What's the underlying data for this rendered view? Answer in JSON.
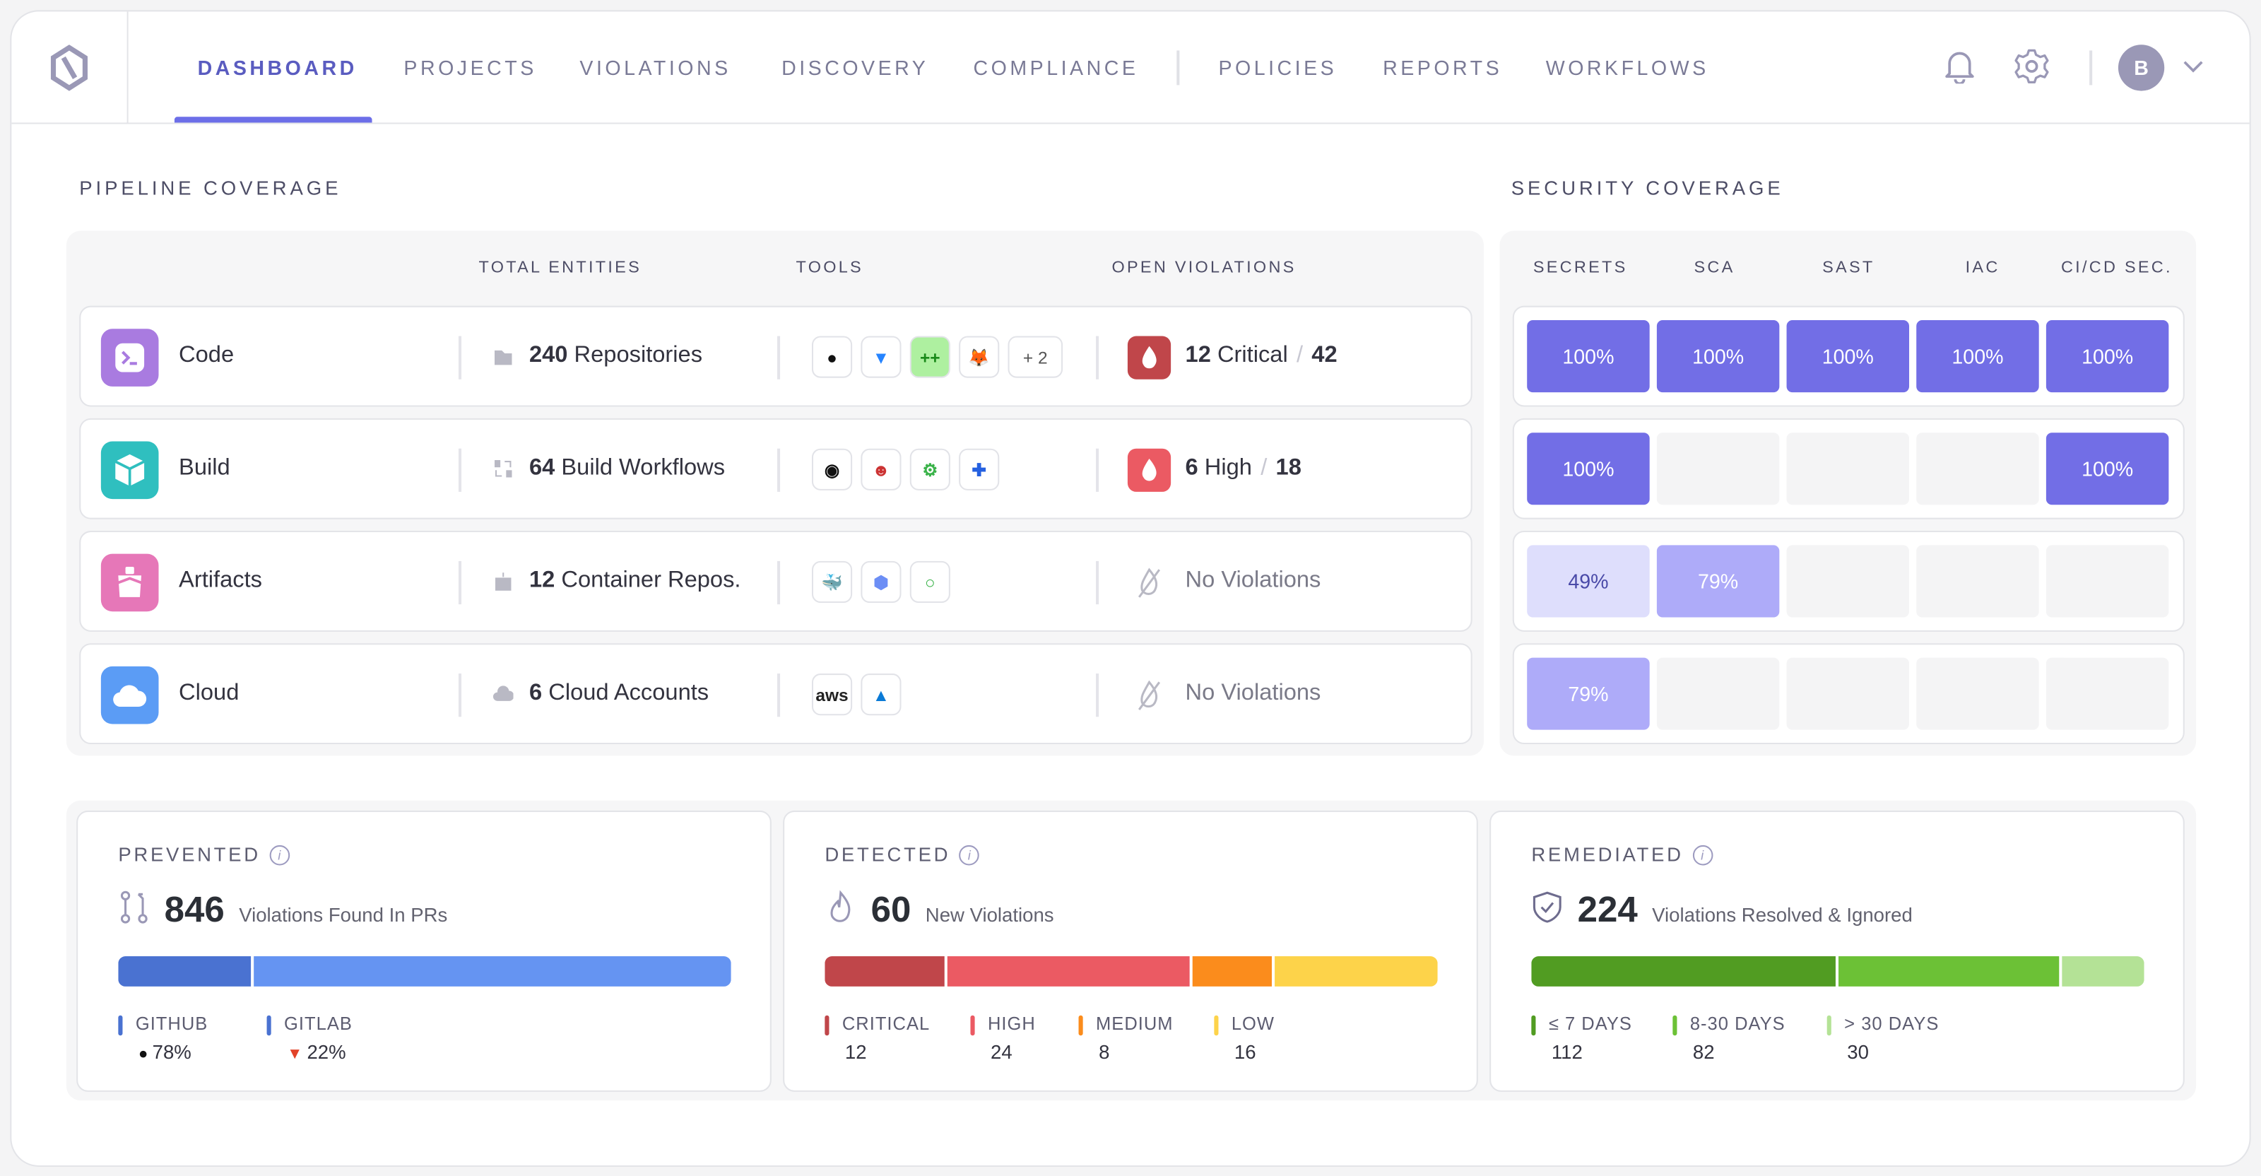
{
  "nav": {
    "items": [
      {
        "label": "DASHBOARD",
        "active": true
      },
      {
        "label": "PROJECTS"
      },
      {
        "label": "VIOLATIONS"
      },
      {
        "label": "DISCOVERY"
      },
      {
        "label": "COMPLIANCE"
      },
      {
        "label": "POLICIES"
      },
      {
        "label": "REPORTS"
      },
      {
        "label": "WORKFLOWS"
      }
    ],
    "avatar_initial": "B",
    "accent": "#6c6ee8"
  },
  "pipeline": {
    "title": "PIPELINE COVERAGE",
    "columns": [
      "TOTAL ENTITIES",
      "TOOLS",
      "OPEN VIOLATIONS"
    ],
    "rows": [
      {
        "label": "Code",
        "icon": "terminal-icon",
        "color": "#a97be0",
        "entity_count": "240",
        "entity_label": "Repositories",
        "entity_icon": "folder-icon",
        "tools": [
          "github-icon",
          "bitbucket-icon",
          "gerrit-icon",
          "gitlab-icon"
        ],
        "more": "+ 2",
        "violations": {
          "count": "12",
          "severity": "Critical",
          "total": "42",
          "color": "#c0464a"
        }
      },
      {
        "label": "Build",
        "icon": "box-icon",
        "color": "#2fbfbf",
        "entity_count": "64",
        "entity_label": "Build Workflows",
        "entity_icon": "workflow-icon",
        "tools": [
          "circleci-icon",
          "jenkins-icon",
          "github-actions-icon",
          "azure-pipelines-icon"
        ],
        "violations": {
          "count": "6",
          "severity": "High",
          "total": "18",
          "color": "#eb5a63"
        }
      },
      {
        "label": "Artifacts",
        "icon": "ship-icon",
        "color": "#e677b8",
        "entity_count": "12",
        "entity_label": "Container Repos.",
        "entity_icon": "container-icon",
        "tools": [
          "docker-icon",
          "container-registry-icon",
          "artifact-registry-icon"
        ],
        "violations": {
          "none": "No Violations"
        }
      },
      {
        "label": "Cloud",
        "icon": "cloud-icon",
        "color": "#5b9cf5",
        "entity_count": "6",
        "entity_label": "Cloud Accounts",
        "entity_icon": "cloud-small-icon",
        "tools": [
          "aws-icon",
          "azure-icon"
        ],
        "violations": {
          "none": "No Violations"
        }
      }
    ]
  },
  "security": {
    "title": "SECURITY COVERAGE",
    "columns": [
      "SECRETS",
      "SCA",
      "SAST",
      "IAC",
      "CI/CD SEC."
    ],
    "rows": [
      [
        "100%",
        "100%",
        "100%",
        "100%",
        "100%"
      ],
      [
        "100%",
        "",
        "",
        "",
        "100%"
      ],
      [
        "49%",
        "79%",
        "",
        "",
        ""
      ],
      [
        "79%",
        "",
        "",
        "",
        ""
      ]
    ]
  },
  "cards": {
    "prevented": {
      "title": "PREVENTED",
      "value": "846",
      "desc": "Violations Found In PRs",
      "legend": [
        {
          "label": "GITHUB",
          "value": "78%",
          "color": "#4a72d1",
          "icon": "github-icon"
        },
        {
          "label": "GITLAB",
          "value": "22%",
          "color": "#4a72d1",
          "icon": "gitlab-icon"
        }
      ],
      "bar": [
        {
          "share": 22,
          "color": "#4a72d1"
        },
        {
          "share": 78,
          "color": "#6594f2"
        }
      ]
    },
    "detected": {
      "title": "DETECTED",
      "value": "60",
      "desc": "New Violations",
      "legend": [
        {
          "label": "CRITICAL",
          "value": "12",
          "color": "#c0464a"
        },
        {
          "label": "HIGH",
          "value": "24",
          "color": "#eb5a63"
        },
        {
          "label": "MEDIUM",
          "value": "8",
          "color": "#fb8c1c"
        },
        {
          "label": "LOW",
          "value": "16",
          "color": "#fdd34a"
        }
      ]
    },
    "remediated": {
      "title": "REMEDIATED",
      "value": "224",
      "desc": "Violations Resolved & Ignored",
      "legend": [
        {
          "label": "≤ 7 DAYS",
          "value": "112",
          "color": "#519c22"
        },
        {
          "label": "8-30 DAYS",
          "value": "82",
          "color": "#6cc136"
        },
        {
          "label": "> 30 DAYS",
          "value": "30",
          "color": "#b4e296"
        }
      ]
    }
  }
}
